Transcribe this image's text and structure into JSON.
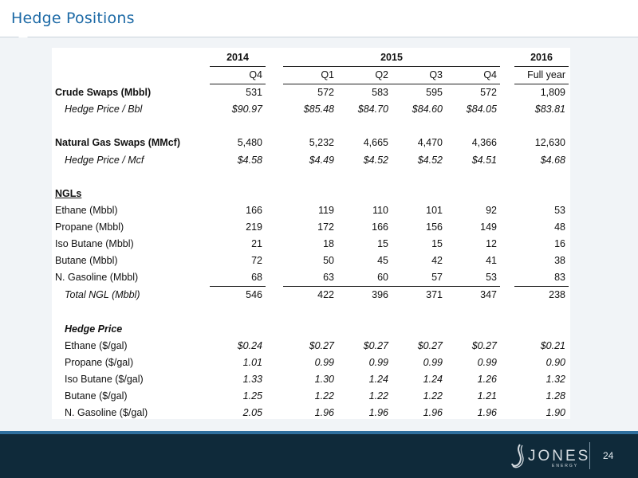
{
  "header": {
    "title": "Hedge Positions"
  },
  "table": {
    "year_headers": [
      "2014",
      "2015",
      "2016"
    ],
    "quarter_headers": [
      "Q4",
      "Q1",
      "Q2",
      "Q3",
      "Q4",
      "Full year"
    ],
    "rows": [
      {
        "label": "Crude Swaps (Mbbl)",
        "style": "bold",
        "values": [
          "531",
          "572",
          "583",
          "595",
          "572",
          "1,809"
        ]
      },
      {
        "label": "Hedge Price / Bbl",
        "style": "ital-indent",
        "values": [
          "$90.97",
          "$85.48",
          "$84.70",
          "$84.60",
          "$84.05",
          "$83.81"
        ]
      },
      {
        "label": "",
        "style": "blank",
        "values": [
          "",
          "",
          "",
          "",
          "",
          ""
        ]
      },
      {
        "label": "Natural Gas Swaps (MMcf)",
        "style": "bold",
        "values": [
          "5,480",
          "5,232",
          "4,665",
          "4,470",
          "4,366",
          "12,630"
        ]
      },
      {
        "label": "Hedge Price / Mcf",
        "style": "ital-indent",
        "values": [
          "$4.58",
          "$4.49",
          "$4.52",
          "$4.52",
          "$4.51",
          "$4.68"
        ]
      },
      {
        "label": "",
        "style": "blank",
        "values": [
          "",
          "",
          "",
          "",
          "",
          ""
        ]
      },
      {
        "label": "NGLs",
        "style": "section",
        "values": [
          "",
          "",
          "",
          "",
          "",
          ""
        ]
      },
      {
        "label": "Ethane (Mbbl)",
        "style": "plain",
        "values": [
          "166",
          "119",
          "110",
          "101",
          "92",
          "53"
        ]
      },
      {
        "label": "Propane (Mbbl)",
        "style": "plain",
        "values": [
          "219",
          "172",
          "166",
          "156",
          "149",
          "48"
        ]
      },
      {
        "label": "Iso Butane (Mbbl)",
        "style": "plain",
        "values": [
          "21",
          "18",
          "15",
          "15",
          "12",
          "16"
        ]
      },
      {
        "label": "Butane (Mbbl)",
        "style": "plain",
        "values": [
          "72",
          "50",
          "45",
          "42",
          "41",
          "38"
        ]
      },
      {
        "label": "N. Gasoline (Mbbl)",
        "style": "plain",
        "values": [
          "68",
          "63",
          "60",
          "57",
          "53",
          "83"
        ]
      },
      {
        "label": "Total NGL (Mbbl)",
        "style": "total",
        "values": [
          "546",
          "422",
          "396",
          "371",
          "347",
          "238"
        ]
      },
      {
        "label": "",
        "style": "blank",
        "values": [
          "",
          "",
          "",
          "",
          "",
          ""
        ]
      },
      {
        "label": "Hedge Price",
        "style": "subhead",
        "values": [
          "",
          "",
          "",
          "",
          "",
          ""
        ]
      },
      {
        "label": "Ethane ($/gal)",
        "style": "price",
        "values": [
          "$0.24",
          "$0.27",
          "$0.27",
          "$0.27",
          "$0.27",
          "$0.21"
        ]
      },
      {
        "label": "Propane ($/gal)",
        "style": "price",
        "values": [
          "1.01",
          "0.99",
          "0.99",
          "0.99",
          "0.99",
          "0.90"
        ]
      },
      {
        "label": "Iso Butane ($/gal)",
        "style": "price",
        "values": [
          "1.33",
          "1.30",
          "1.24",
          "1.24",
          "1.26",
          "1.32"
        ]
      },
      {
        "label": "Butane ($/gal)",
        "style": "price",
        "values": [
          "1.25",
          "1.22",
          "1.22",
          "1.22",
          "1.21",
          "1.28"
        ]
      },
      {
        "label": "N. Gasoline ($/gal)",
        "style": "price",
        "values": [
          "2.05",
          "1.96",
          "1.96",
          "1.96",
          "1.96",
          "1.90"
        ]
      }
    ]
  },
  "footer": {
    "logo_text": "JONES",
    "logo_sub": "ENERGY",
    "page_number": "24"
  }
}
